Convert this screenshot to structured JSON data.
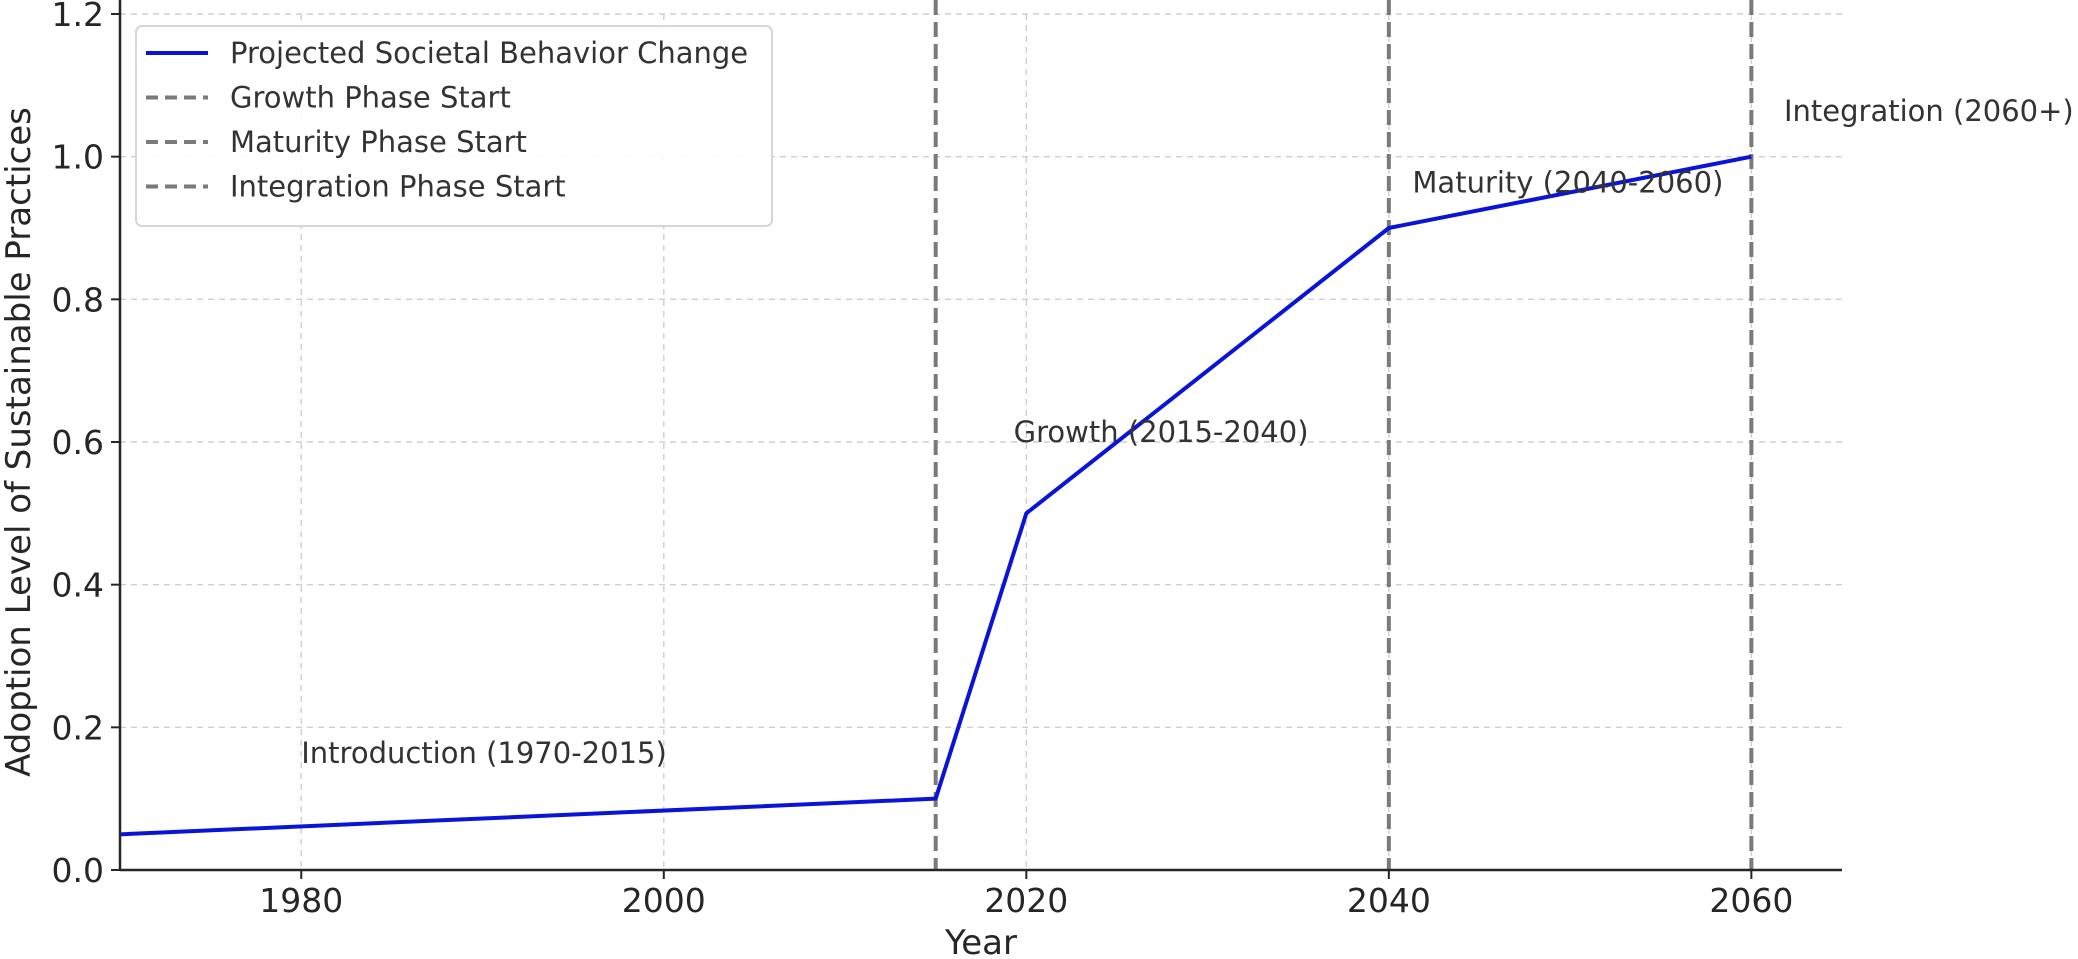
{
  "chart_data": {
    "type": "line",
    "xlabel": "Year",
    "ylabel": "Adoption Level of Sustainable Practices",
    "xlim": [
      1970,
      2065
    ],
    "ylim": [
      0.0,
      1.2
    ],
    "x_ticks": [
      1980,
      2000,
      2020,
      2040,
      2060
    ],
    "y_ticks": [
      0.0,
      0.2,
      0.4,
      0.6,
      0.8,
      1.0,
      1.2
    ],
    "grid": true,
    "legend_position": "top-left",
    "series": [
      {
        "name": "Projected Societal Behavior Change",
        "color": "#0a14d8",
        "style": "solid",
        "x": [
          1970,
          2015,
          2020,
          2040,
          2060
        ],
        "y": [
          0.05,
          0.1,
          0.5,
          0.9,
          1.0
        ]
      }
    ],
    "vlines": [
      {
        "name": "Growth Phase Start",
        "x": 2015,
        "color": "#7a7a7a",
        "style": "dashed"
      },
      {
        "name": "Maturity Phase Start",
        "x": 2040,
        "color": "#7a7a7a",
        "style": "dashed"
      },
      {
        "name": "Integration Phase Start",
        "x": 2060,
        "color": "#7a7a7a",
        "style": "dashed"
      }
    ],
    "annotations": [
      {
        "text": "Introduction (1970-2015)",
        "x": 1980,
        "y": 0.15
      },
      {
        "text": "Growth (2015-2040)",
        "x": 2019.3,
        "y": 0.6
      },
      {
        "text": "Maturity (2040-2060)",
        "x": 2041.3,
        "y": 0.95
      },
      {
        "text": "Integration (2060+)",
        "x": 2061.8,
        "y": 1.05
      }
    ]
  }
}
